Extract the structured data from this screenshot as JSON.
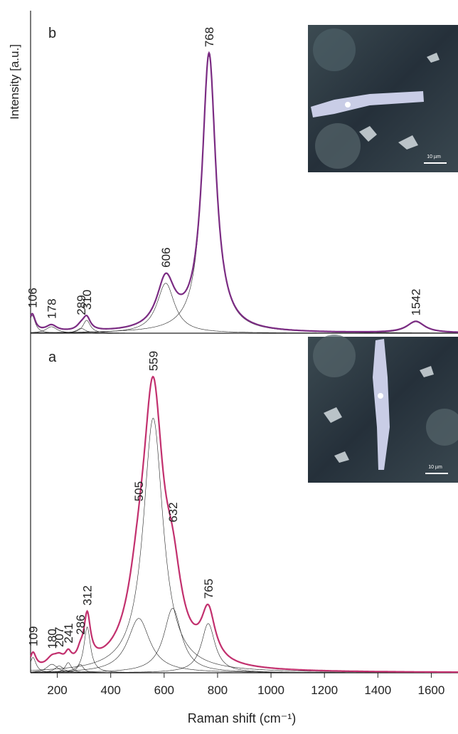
{
  "chart_data": {
    "type": "spectrum",
    "x_label": "Raman shift (cm⁻¹)",
    "y_label": "Intensity [a.u.]",
    "xlim": [
      100,
      1700
    ],
    "xticks": [
      200,
      400,
      600,
      800,
      1000,
      1200,
      1400,
      1600
    ],
    "envelope_colors": [
      "#7b2c83",
      "#c2306e"
    ],
    "component_color": "#222222",
    "panels": [
      {
        "label": "b",
        "ylim": [
          0,
          100
        ],
        "inset_scale": "10 µm",
        "peaks": [
          {
            "position": 106,
            "height": 5.5,
            "width": 28
          },
          {
            "position": 178,
            "height": 2,
            "width": 50
          },
          {
            "position": 289,
            "height": 1.5,
            "width": 40
          },
          {
            "position": 310,
            "height": 4,
            "width": 34
          },
          {
            "position": 606,
            "height": 15.5,
            "width": 80
          },
          {
            "position": 768,
            "height": 86,
            "width": 62
          },
          {
            "position": 1542,
            "height": 3.5,
            "width": 80
          }
        ]
      },
      {
        "label": "a",
        "ylim": [
          0,
          100
        ],
        "inset_scale": "10 µm",
        "peaks": [
          {
            "position": 109,
            "height": 4.5,
            "width": 28
          },
          {
            "position": 180,
            "height": 2.5,
            "width": 50
          },
          {
            "position": 207,
            "height": 2,
            "width": 40
          },
          {
            "position": 241,
            "height": 3,
            "width": 28
          },
          {
            "position": 286,
            "height": 2.5,
            "width": 28
          },
          {
            "position": 312,
            "height": 13.5,
            "width": 30
          },
          {
            "position": 505,
            "height": 16,
            "width": 100
          },
          {
            "position": 559,
            "height": 75,
            "width": 90
          },
          {
            "position": 632,
            "height": 19,
            "width": 80
          },
          {
            "position": 765,
            "height": 14.5,
            "width": 62
          }
        ]
      }
    ]
  }
}
